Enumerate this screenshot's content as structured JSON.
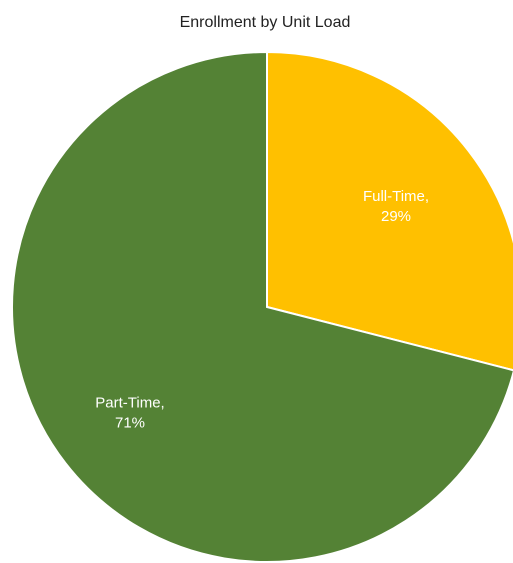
{
  "chart_data": {
    "type": "pie",
    "title": "Enrollment by Unit Load",
    "slices": [
      {
        "label": "Full-Time",
        "percent_label": "29%",
        "value": 29,
        "color": "#FFC000",
        "text_color": "#FFFFFF"
      },
      {
        "label": "Part-Time",
        "percent_label": "71%",
        "value": 71,
        "color": "#548235",
        "text_color": "#FFFFFF"
      }
    ],
    "start_angle_deg": 0,
    "direction": "clockwise",
    "legend": "none"
  }
}
